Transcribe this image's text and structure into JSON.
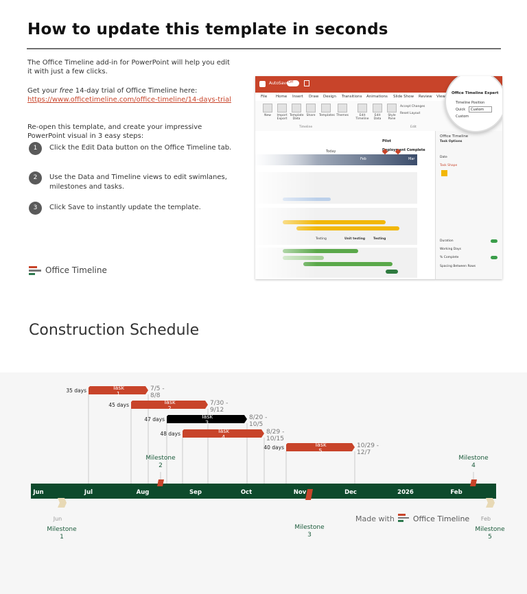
{
  "intro": {
    "title": "How to update this template in seconds",
    "para1": "The Office Timeline add-in for PowerPoint will help you edit it with just a few clicks.",
    "para2_prefix": "Get your ",
    "para2_em": "free",
    "para2_suffix": " 14-day trial of Office Timeline here:",
    "trial_link": "https://www.officetimeline.com/office-timeline/14-days-trial",
    "para3": "Re-open this template, and create your impressive PowerPoint visual in 3 easy steps:",
    "steps": [
      {
        "num": "1",
        "text": "Click the Edit Data button on the Office Timeline tab."
      },
      {
        "num": "2",
        "text": "Use the Data and Timeline views to edit swimlanes, milestones and tasks."
      },
      {
        "num": "3",
        "text": "Click Save to instantly update the template."
      }
    ],
    "logo_text": "Office Timeline"
  },
  "mockup": {
    "autosave": "AutoSave",
    "toggle": "Off",
    "menu": [
      "File",
      "Home",
      "Insert",
      "Draw",
      "Design",
      "Transitions",
      "Animations",
      "Slide Show",
      "Review",
      "View"
    ],
    "toolbar": [
      "New",
      "Import Export",
      "Template Data",
      "Share",
      "Templates",
      "Themes",
      "Edit Timeline",
      "Edit Data",
      "Style Pane"
    ],
    "accept_changes": "Accept Changes",
    "reset_layout": "Reset Layout",
    "group_timeline": "Timeline",
    "group_edit": "Edit",
    "magnifier_title": "Office Timeline Expert",
    "magnifier_pos": "Timeline Position",
    "magnifier_quick": "Quick",
    "magnifier_custom": "Custom",
    "magnifier_custom2": "Custom",
    "panel_title": "Office Timeline",
    "panel_sub": "Task Options",
    "panel_rows": [
      "Date",
      "Task Shape",
      "Duration",
      "Working Days",
      "% Complete",
      "Spacing Between Rows"
    ],
    "canvas_labels": [
      "Pilot",
      "Deployment Complete",
      "Today",
      "Feb",
      "Mar",
      "Testing",
      "Unit testing",
      "Testing",
      "Development complete"
    ]
  },
  "schedule": {
    "title": "Construction Schedule",
    "made_with": "Made with",
    "made_logo": "Office Timeline",
    "months": [
      "Jun",
      "Jul",
      "Aug",
      "Sep",
      "Oct",
      "Nov",
      "Dec",
      "2026",
      "Feb"
    ],
    "tasks": [
      {
        "name": "Task 1",
        "l1": "Task",
        "l2": "1",
        "duration": "35 days",
        "dates1": "7/5 -",
        "dates2": "8/8",
        "color": "#c8442a"
      },
      {
        "name": "Task 2",
        "l1": "Task",
        "l2": "2",
        "duration": "45 days",
        "dates1": "7/30 -",
        "dates2": "9/12",
        "color": "#c8442a"
      },
      {
        "name": "Task 3",
        "l1": "Task",
        "l2": "3",
        "duration": "47 days",
        "dates1": "8/20 -",
        "dates2": "10/5",
        "color": "#000000"
      },
      {
        "name": "Task 4",
        "l1": "Task",
        "l2": "4",
        "duration": "48 days",
        "dates1": "8/29 -",
        "dates2": "10/15",
        "color": "#c8442a"
      },
      {
        "name": "Task 5",
        "l1": "Task",
        "l2": "5",
        "duration": "40 days",
        "dates1": "10/29 -",
        "dates2": "12/7",
        "color": "#c8442a"
      }
    ],
    "milestones": [
      {
        "l1": "Milestone",
        "l2": "1",
        "date": "Jun",
        "color": "#e8d9b5"
      },
      {
        "l1": "Milestone",
        "l2": "2",
        "date": "",
        "color": "#c8442a"
      },
      {
        "l1": "Milestone",
        "l2": "3",
        "date": "",
        "color": "#c8442a"
      },
      {
        "l1": "Milestone",
        "l2": "4",
        "date": "",
        "color": "#c8442a"
      },
      {
        "l1": "Milestone",
        "l2": "5",
        "date": "Feb",
        "color": "#e8d9b5"
      }
    ],
    "timeline_color": "#0d4a2c",
    "milestone_text_color": "#1a5a3a"
  },
  "colors": {
    "accent": "#c8442a",
    "link": "#c8442a",
    "timeline": "#0d4a2c"
  }
}
